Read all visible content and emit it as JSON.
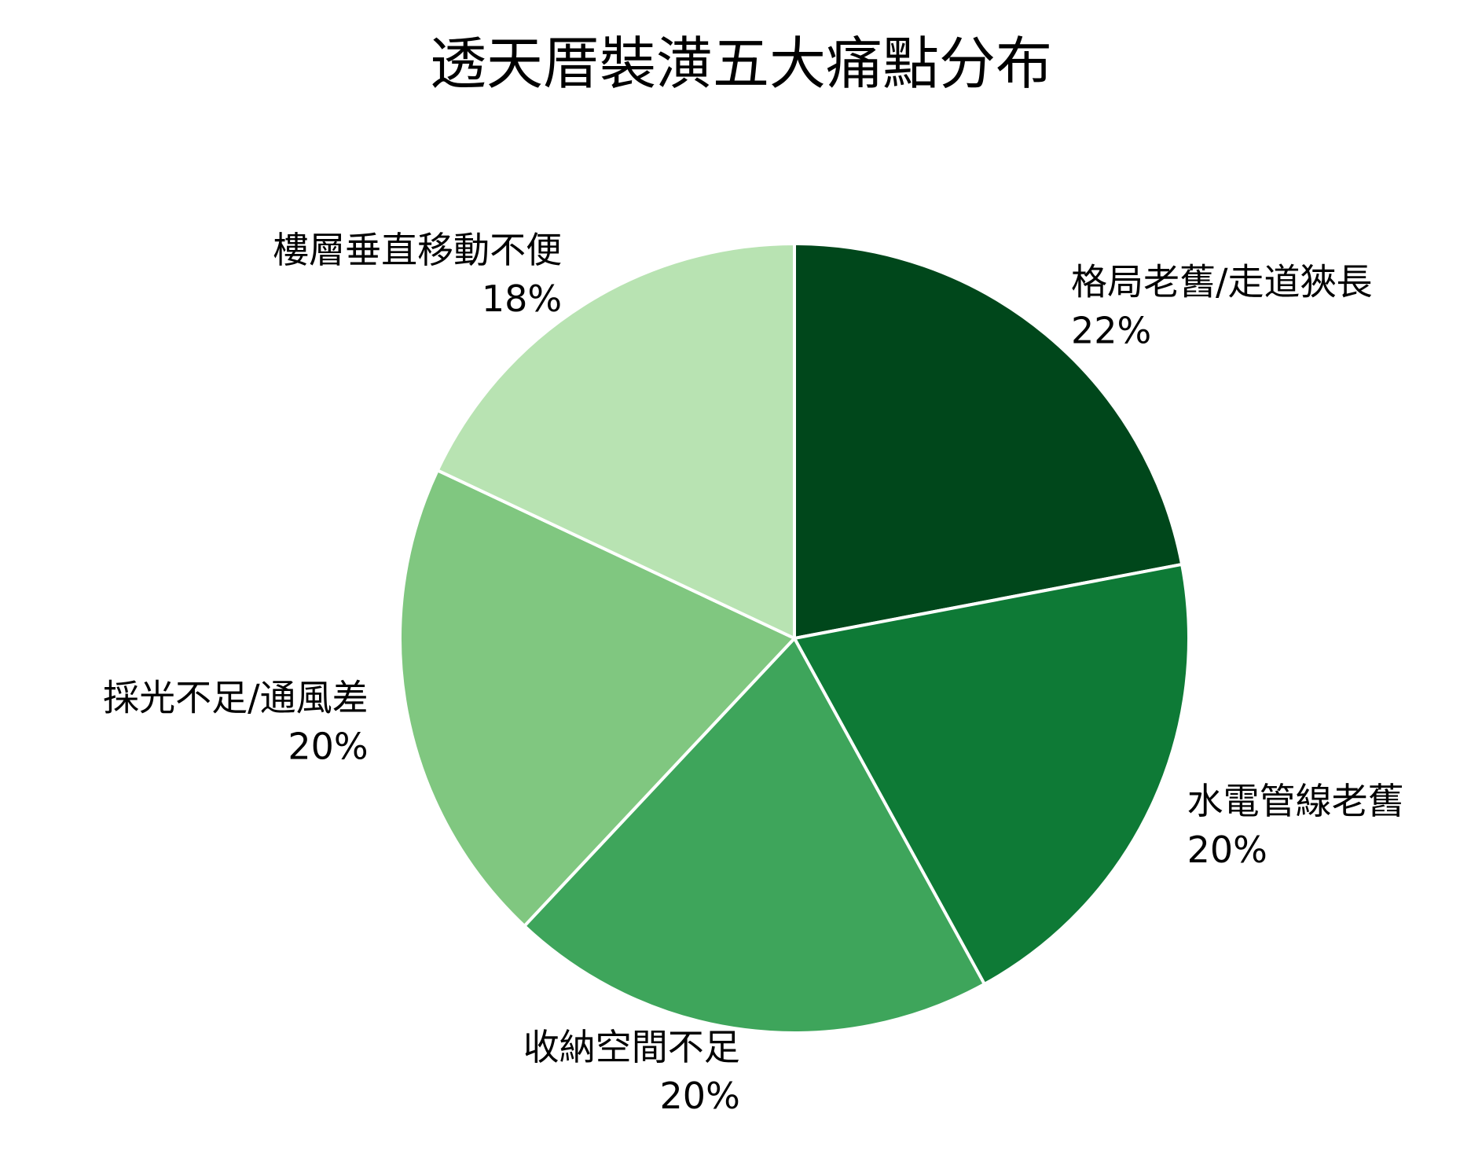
{
  "chart_data": {
    "type": "pie",
    "title": "透天厝裝潢五大痛點分布",
    "start_angle": 90,
    "direction": "clockwise",
    "slices": [
      {
        "label": "格局老舊/走道狹長",
        "value": 22,
        "pct_label": "22%",
        "color": "#00471b"
      },
      {
        "label": "水電管線老舊",
        "value": 20,
        "pct_label": "20%",
        "color": "#0e7a36"
      },
      {
        "label": "收納空間不足",
        "value": 20,
        "pct_label": "20%",
        "color": "#3ea55b"
      },
      {
        "label": "採光不足/通風差",
        "value": 20,
        "pct_label": "20%",
        "color": "#80c780"
      },
      {
        "label": "樓層垂直移動不便",
        "value": 18,
        "pct_label": "18%",
        "color": "#b8e3b2"
      }
    ],
    "edge_color": "#ffffff"
  }
}
